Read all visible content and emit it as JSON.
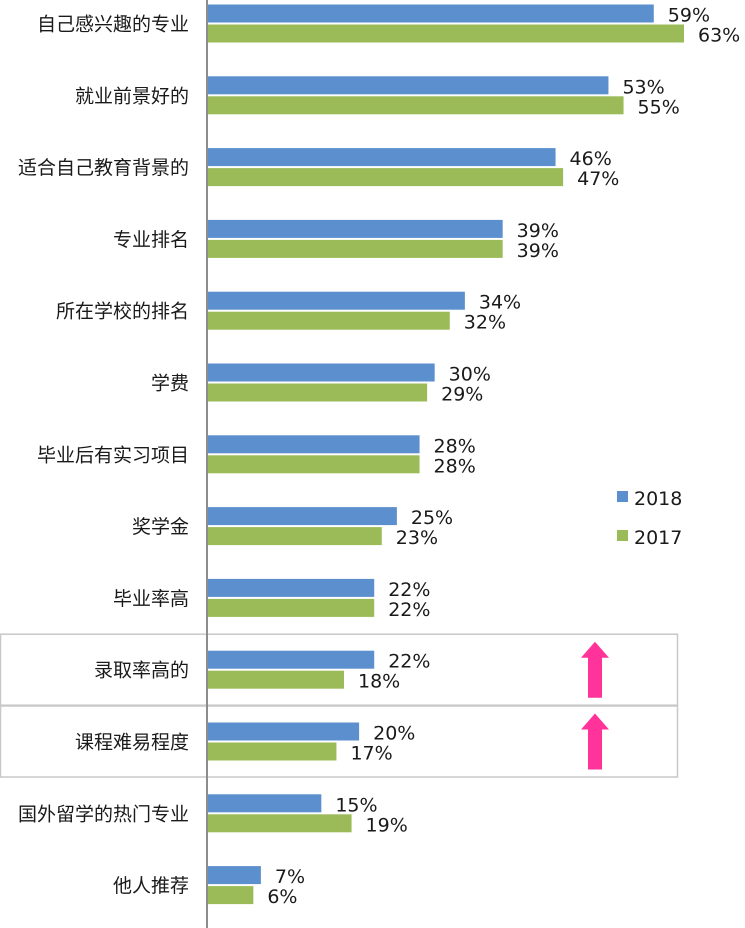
{
  "chart_data": {
    "type": "bar",
    "orientation": "horizontal",
    "title": "",
    "xlabel": "",
    "ylabel": "",
    "xlim": [
      0,
      70
    ],
    "grid": false,
    "legend_position": "right",
    "categories": [
      "自己感兴趣的专业",
      "就业前景好的",
      "适合自己教育背景的",
      "专业排名",
      "所在学校的排名",
      "学费",
      "毕业后有实习项目",
      "奖学金",
      "毕业率高",
      "录取率高的",
      "课程难易程度",
      "国外留学的热门专业",
      "他人推荐"
    ],
    "series": [
      {
        "name": "2018",
        "color": "#5b8fcd",
        "values": [
          59,
          53,
          46,
          39,
          34,
          30,
          28,
          25,
          22,
          22,
          20,
          15,
          7
        ],
        "labels": [
          "59%",
          "53%",
          "46%",
          "39%",
          "34%",
          "30%",
          "28%",
          "25%",
          "22%",
          "22%",
          "20%",
          "15%",
          "7%"
        ]
      },
      {
        "name": "2017",
        "color": "#9bbb59",
        "values": [
          63,
          55,
          47,
          39,
          32,
          29,
          28,
          23,
          22,
          18,
          17,
          19,
          6
        ],
        "labels": [
          "63%",
          "55%",
          "47%",
          "39%",
          "32%",
          "29%",
          "28%",
          "23%",
          "22%",
          "18%",
          "17%",
          "19%",
          "6%"
        ]
      }
    ],
    "highlighted_categories": [
      "录取率高的",
      "课程难易程度"
    ],
    "annotations": [
      {
        "type": "up-arrow",
        "category": "录取率高的",
        "color": "#ff3399"
      },
      {
        "type": "up-arrow",
        "category": "课程难易程度",
        "color": "#ff3399"
      }
    ]
  }
}
